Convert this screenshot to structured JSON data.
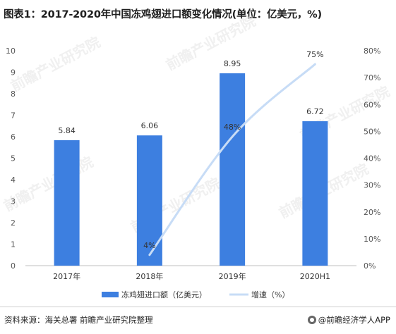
{
  "title": "图表1：2017-2020年中国冻鸡翅进口额变化情况(单位：亿美元，%)",
  "footer": {
    "source": "资料来源：海关总署 前瞻产业研究院整理",
    "brand": "@前瞻经济学人APP"
  },
  "colors": {
    "bar": "#3d7fe0",
    "line": "#c7dcf6",
    "watermark": "#e4e4e4"
  },
  "watermark": "前瞻产业研究院",
  "chart_data": {
    "type": "bar",
    "categories": [
      "2017年",
      "2018年",
      "2019年",
      "2020H1"
    ],
    "series": [
      {
        "name": "冻鸡翅进口额（亿美元）",
        "type": "bar",
        "axis": "left",
        "values": [
          5.84,
          6.06,
          8.95,
          6.72
        ],
        "labels": [
          "5.84",
          "6.06",
          "8.95",
          "6.72"
        ]
      },
      {
        "name": "增速（%）",
        "type": "line",
        "axis": "right",
        "points": [
          {
            "x": "2018年",
            "y": 4,
            "label": "4%"
          },
          {
            "x": "2019年",
            "y": 48,
            "label": "48%"
          },
          {
            "x": "2020H1",
            "y": 75,
            "label": "75%"
          }
        ]
      }
    ],
    "y_left": {
      "min": 0,
      "max": 10,
      "ticks": [
        "0",
        "1",
        "2",
        "3",
        "4",
        "5",
        "6",
        "7",
        "8",
        "9",
        "10"
      ]
    },
    "y_right": {
      "min": 0,
      "max": 80,
      "ticks": [
        "0%",
        "10%",
        "20%",
        "30%",
        "40%",
        "50%",
        "60%",
        "70%",
        "80%"
      ]
    },
    "grid": false,
    "legend_position": "bottom"
  }
}
